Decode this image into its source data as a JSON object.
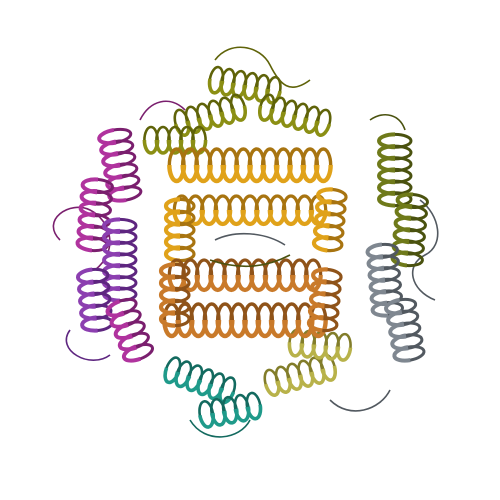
{
  "image": {
    "background": "#ffffff",
    "subject": "protein-ribbon-assembly"
  },
  "chains": [
    {
      "id": "magenta",
      "color": "#b0339e",
      "shade": "#7a1f6e"
    },
    {
      "id": "purple",
      "color": "#8c3fb0",
      "shade": "#5e2680"
    },
    {
      "id": "olive-top",
      "color": "#8b8f14",
      "shade": "#5f6309"
    },
    {
      "id": "gold",
      "color": "#e0a21a",
      "shade": "#a87410"
    },
    {
      "id": "brown",
      "color": "#c97a2a",
      "shade": "#8f5319"
    },
    {
      "id": "olive-right",
      "color": "#6f7a1a",
      "shade": "#4a520f"
    },
    {
      "id": "teal",
      "color": "#1f9a8a",
      "shade": "#136a5f"
    },
    {
      "id": "grey",
      "color": "#7f8790",
      "shade": "#525960"
    },
    {
      "id": "khaki",
      "color": "#b8b24a",
      "shade": "#827d2a"
    }
  ]
}
